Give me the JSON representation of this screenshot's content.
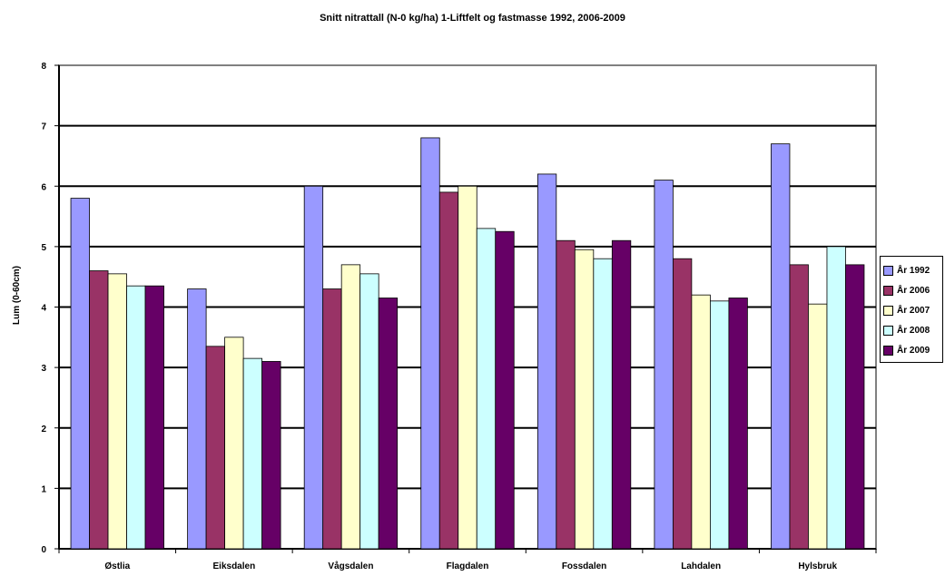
{
  "chart_data": {
    "type": "bar",
    "title": "Snitt nitrattall (N-0 kg/ha) 1-Liftfelt og fastmasse 1992, 2006-2009",
    "xlabel": "",
    "ylabel": "Lum (0-60cm)",
    "ylim": [
      0,
      8
    ],
    "yticks": [
      0,
      1,
      2,
      3,
      4,
      5,
      6,
      7,
      8
    ],
    "grid": true,
    "legend_position": "right",
    "categories": [
      "Østlia",
      "Eiksdalen",
      "Vågsdalen",
      "Flagdalen",
      "Fossdalen",
      "Lahdalen",
      "Hylsbruk"
    ],
    "series": [
      {
        "name": "År 1992",
        "color": "#9999FF",
        "values": [
          5.8,
          4.3,
          6.0,
          6.8,
          6.2,
          6.1,
          6.7
        ]
      },
      {
        "name": "År 2006",
        "color": "#993366",
        "values": [
          4.6,
          3.35,
          4.3,
          5.9,
          5.1,
          4.8,
          4.7
        ]
      },
      {
        "name": "År 2007",
        "color": "#FFFFCC",
        "values": [
          4.55,
          3.5,
          4.7,
          6.0,
          4.95,
          4.2,
          4.05
        ]
      },
      {
        "name": "År 2008",
        "color": "#CCFFFF",
        "values": [
          4.35,
          3.15,
          4.55,
          5.3,
          4.8,
          4.1,
          5.0
        ]
      },
      {
        "name": "År 2009",
        "color": "#660066",
        "values": [
          4.35,
          3.1,
          4.15,
          5.25,
          5.1,
          4.15,
          4.7
        ]
      }
    ]
  }
}
